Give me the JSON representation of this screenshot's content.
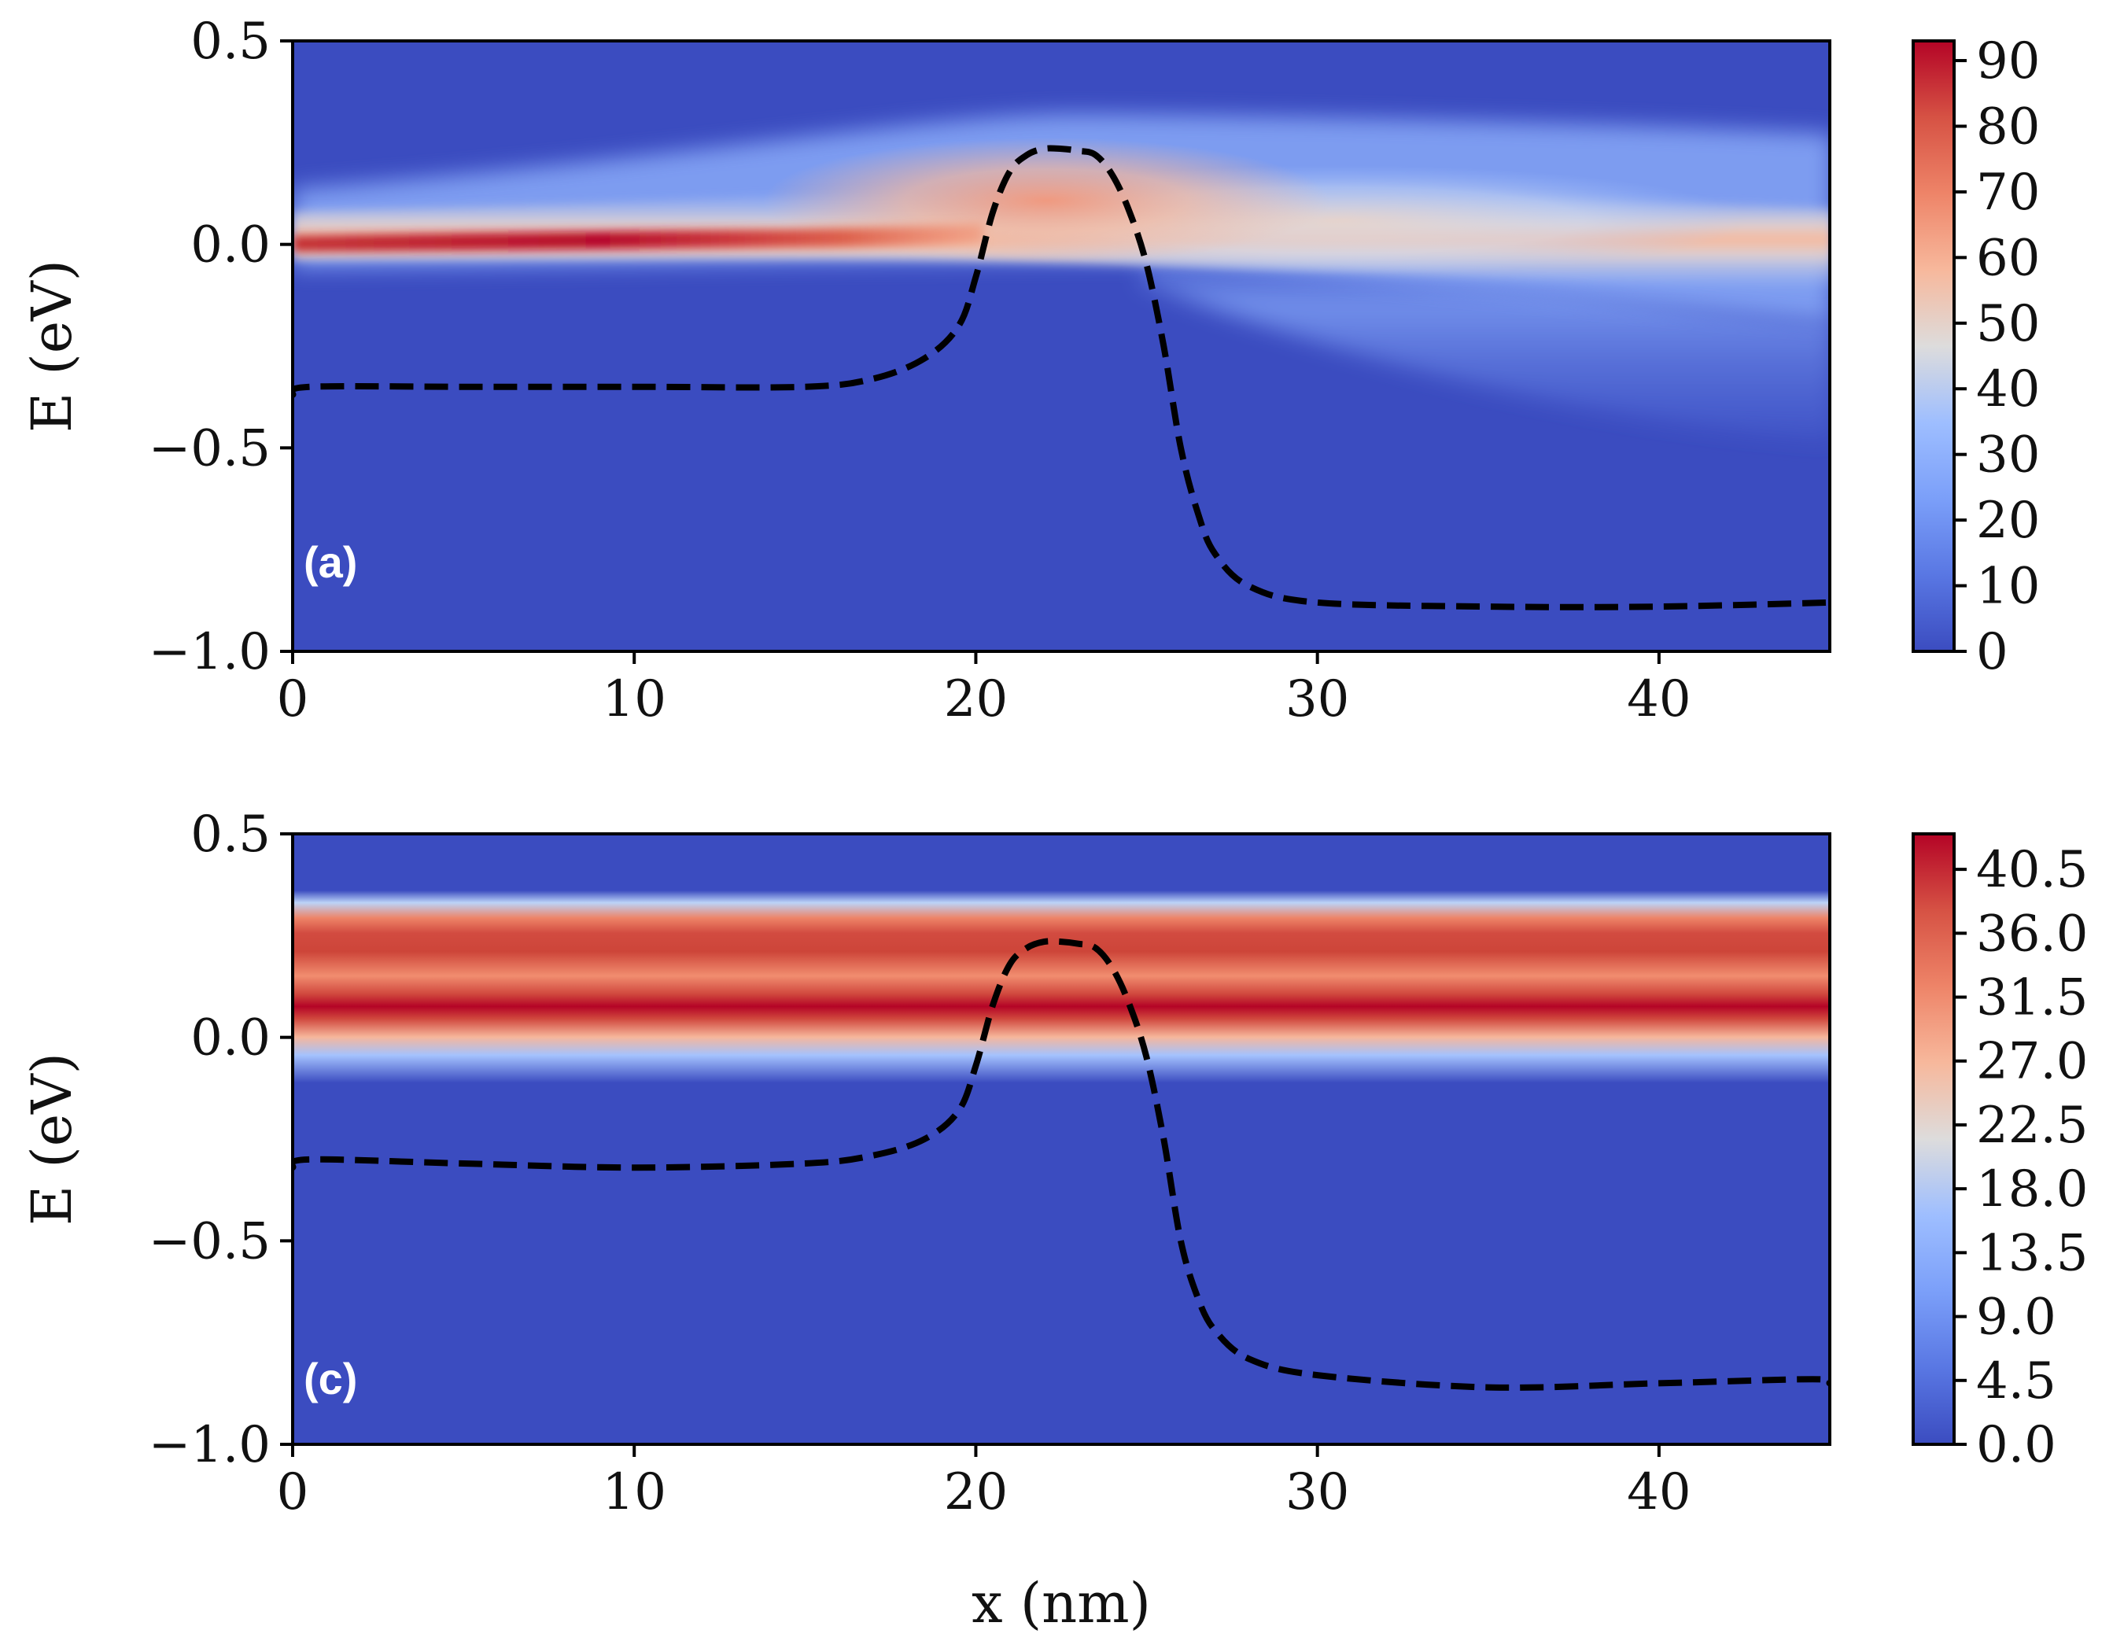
{
  "chart_data": [
    {
      "type": "heatmap",
      "panel_label": "(a)",
      "colormap": "coolwarm",
      "xlabel": "",
      "ylabel": "E (eV)",
      "xlim": [
        0,
        45
      ],
      "ylim": [
        -1.0,
        0.5
      ],
      "x_ticks": [
        0,
        10,
        20,
        30,
        40
      ],
      "x_tick_labels": [
        "0",
        "10",
        "20",
        "30",
        "40"
      ],
      "y_ticks": [
        0.5,
        0.0,
        -0.5,
        -1.0
      ],
      "y_tick_labels": [
        "0.5",
        "0.0",
        "−0.5",
        "−1.0"
      ],
      "colorbar": {
        "min": 0,
        "max": 93,
        "ticks": [
          0,
          10,
          20,
          30,
          40,
          50,
          60,
          70,
          80,
          90
        ],
        "tick_labels": [
          "0",
          "10",
          "20",
          "30",
          "40",
          "50",
          "60",
          "70",
          "80",
          "90"
        ]
      },
      "band_edge": {
        "style": "dashed",
        "x": [
          0,
          0.5,
          5,
          10,
          15,
          17,
          18.5,
          19.5,
          20,
          20.5,
          21,
          21.5,
          22,
          22.5,
          23,
          23.5,
          24,
          24.5,
          25,
          25.5,
          26,
          26.5,
          27,
          28,
          30,
          35,
          40,
          45
        ],
        "y": [
          -0.37,
          -0.35,
          -0.35,
          -0.35,
          -0.35,
          -0.33,
          -0.28,
          -0.2,
          -0.08,
          0.08,
          0.18,
          0.22,
          0.235,
          0.235,
          0.23,
          0.22,
          0.17,
          0.08,
          -0.05,
          -0.25,
          -0.5,
          -0.66,
          -0.76,
          -0.84,
          -0.88,
          -0.89,
          -0.89,
          -0.88
        ]
      }
    },
    {
      "type": "heatmap",
      "panel_label": "(c)",
      "colormap": "coolwarm",
      "xlabel": "x (nm)",
      "ylabel": "E (eV)",
      "xlim": [
        0,
        45
      ],
      "ylim": [
        -1.0,
        0.5
      ],
      "x_ticks": [
        0,
        10,
        20,
        30,
        40
      ],
      "x_tick_labels": [
        "0",
        "10",
        "20",
        "30",
        "40"
      ],
      "y_ticks": [
        0.5,
        0.0,
        -0.5,
        -1.0
      ],
      "y_tick_labels": [
        "0.5",
        "0.0",
        "−0.5",
        "−1.0"
      ],
      "colorbar": {
        "min": 0,
        "max": 43,
        "ticks": [
          0,
          4.5,
          9,
          13.5,
          18,
          22.5,
          27,
          31.5,
          36,
          40.5
        ],
        "tick_labels": [
          "0.0",
          "4.5",
          "9.0",
          "13.5",
          "18.0",
          "22.5",
          "27.0",
          "31.5",
          "36.0",
          "40.5"
        ]
      },
      "band_edge": {
        "style": "dashed",
        "x": [
          0,
          0.5,
          5,
          10,
          15,
          17,
          18.5,
          19.5,
          20,
          20.5,
          21,
          21.5,
          22,
          22.5,
          23,
          23.5,
          24,
          24.5,
          25,
          25.5,
          26,
          26.5,
          27,
          28,
          30,
          35,
          40,
          44.5,
          45
        ],
        "y": [
          -0.32,
          -0.3,
          -0.31,
          -0.32,
          -0.31,
          -0.29,
          -0.25,
          -0.18,
          -0.07,
          0.08,
          0.18,
          0.22,
          0.235,
          0.235,
          0.23,
          0.22,
          0.17,
          0.08,
          -0.05,
          -0.25,
          -0.5,
          -0.64,
          -0.72,
          -0.79,
          -0.83,
          -0.86,
          -0.85,
          -0.84,
          -0.85
        ]
      }
    }
  ]
}
